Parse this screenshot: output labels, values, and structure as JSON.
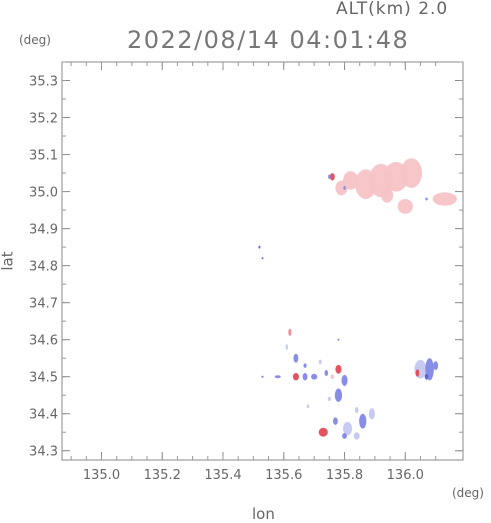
{
  "header": {
    "altitude_label": "ALT(km) 2.0",
    "timestamp": "2022/08/14 04:01:48",
    "y_unit": "(deg)",
    "x_unit": "(deg)"
  },
  "chart_data": {
    "type": "scatter",
    "xlabel": "lon",
    "ylabel": "lat",
    "xlim": [
      134.87,
      136.19
    ],
    "ylim": [
      34.275,
      35.35
    ],
    "x_ticks": [
      "135.0",
      "135.2",
      "135.4",
      "135.6",
      "135.8",
      "136.0"
    ],
    "y_ticks": [
      "34.3",
      "34.4",
      "34.5",
      "34.6",
      "34.7",
      "34.8",
      "34.9",
      "35.0",
      "35.1",
      "35.2",
      "35.3"
    ],
    "grid": false,
    "colors": {
      "light_pink": "#f6c3c6",
      "pink": "#f08a93",
      "red": "#e24b57",
      "light_blue": "#c4c8f2",
      "blue": "#8288e6",
      "dark_blue": "#5a5fd8"
    },
    "echoes": [
      {
        "lon": 135.87,
        "lat": 35.02,
        "rx": 0.035,
        "ry": 0.04,
        "color": "light_pink"
      },
      {
        "lon": 135.92,
        "lat": 35.03,
        "rx": 0.04,
        "ry": 0.045,
        "color": "light_pink"
      },
      {
        "lon": 135.97,
        "lat": 35.04,
        "rx": 0.04,
        "ry": 0.04,
        "color": "light_pink"
      },
      {
        "lon": 136.02,
        "lat": 35.05,
        "rx": 0.035,
        "ry": 0.04,
        "color": "light_pink"
      },
      {
        "lon": 135.82,
        "lat": 35.03,
        "rx": 0.025,
        "ry": 0.025,
        "color": "light_pink"
      },
      {
        "lon": 135.79,
        "lat": 35.01,
        "rx": 0.02,
        "ry": 0.02,
        "color": "light_pink"
      },
      {
        "lon": 136.0,
        "lat": 34.96,
        "rx": 0.025,
        "ry": 0.02,
        "color": "light_pink"
      },
      {
        "lon": 135.94,
        "lat": 34.99,
        "rx": 0.02,
        "ry": 0.02,
        "color": "light_pink"
      },
      {
        "lon": 136.13,
        "lat": 34.98,
        "rx": 0.04,
        "ry": 0.018,
        "color": "light_pink"
      },
      {
        "lon": 135.76,
        "lat": 35.04,
        "rx": 0.008,
        "ry": 0.01,
        "color": "red"
      },
      {
        "lon": 135.75,
        "lat": 35.04,
        "rx": 0.004,
        "ry": 0.006,
        "color": "blue"
      },
      {
        "lon": 135.8,
        "lat": 35.01,
        "rx": 0.004,
        "ry": 0.005,
        "color": "blue"
      },
      {
        "lon": 136.07,
        "lat": 34.98,
        "rx": 0.004,
        "ry": 0.004,
        "color": "blue"
      },
      {
        "lon": 135.52,
        "lat": 34.85,
        "rx": 0.002,
        "ry": 0.004,
        "color": "dark_blue"
      },
      {
        "lon": 135.53,
        "lat": 34.82,
        "rx": 0.002,
        "ry": 0.002,
        "color": "dark_blue"
      },
      {
        "lon": 135.62,
        "lat": 34.62,
        "rx": 0.005,
        "ry": 0.01,
        "color": "pink"
      },
      {
        "lon": 135.61,
        "lat": 34.58,
        "rx": 0.004,
        "ry": 0.008,
        "color": "light_blue"
      },
      {
        "lon": 135.78,
        "lat": 34.6,
        "rx": 0.003,
        "ry": 0.003,
        "color": "blue"
      },
      {
        "lon": 135.64,
        "lat": 34.55,
        "rx": 0.008,
        "ry": 0.012,
        "color": "blue"
      },
      {
        "lon": 135.67,
        "lat": 34.53,
        "rx": 0.005,
        "ry": 0.006,
        "color": "blue"
      },
      {
        "lon": 135.72,
        "lat": 34.54,
        "rx": 0.005,
        "ry": 0.006,
        "color": "light_blue"
      },
      {
        "lon": 135.64,
        "lat": 34.5,
        "rx": 0.01,
        "ry": 0.01,
        "color": "red"
      },
      {
        "lon": 135.67,
        "lat": 34.5,
        "rx": 0.008,
        "ry": 0.01,
        "color": "blue"
      },
      {
        "lon": 135.7,
        "lat": 34.5,
        "rx": 0.01,
        "ry": 0.008,
        "color": "blue"
      },
      {
        "lon": 135.74,
        "lat": 34.51,
        "rx": 0.006,
        "ry": 0.008,
        "color": "blue"
      },
      {
        "lon": 135.78,
        "lat": 34.52,
        "rx": 0.01,
        "ry": 0.012,
        "color": "red"
      },
      {
        "lon": 135.8,
        "lat": 34.49,
        "rx": 0.01,
        "ry": 0.015,
        "color": "blue"
      },
      {
        "lon": 135.76,
        "lat": 34.5,
        "rx": 0.006,
        "ry": 0.006,
        "color": "light_pink"
      },
      {
        "lon": 135.78,
        "lat": 34.45,
        "rx": 0.012,
        "ry": 0.018,
        "color": "blue"
      },
      {
        "lon": 135.75,
        "lat": 34.44,
        "rx": 0.005,
        "ry": 0.006,
        "color": "light_blue"
      },
      {
        "lon": 135.68,
        "lat": 34.42,
        "rx": 0.004,
        "ry": 0.005,
        "color": "light_blue"
      },
      {
        "lon": 135.84,
        "lat": 34.41,
        "rx": 0.006,
        "ry": 0.008,
        "color": "light_blue"
      },
      {
        "lon": 135.58,
        "lat": 34.5,
        "rx": 0.01,
        "ry": 0.004,
        "color": "blue"
      },
      {
        "lon": 135.53,
        "lat": 34.5,
        "rx": 0.004,
        "ry": 0.003,
        "color": "blue"
      },
      {
        "lon": 135.73,
        "lat": 34.35,
        "rx": 0.015,
        "ry": 0.012,
        "color": "red"
      },
      {
        "lon": 135.77,
        "lat": 34.38,
        "rx": 0.008,
        "ry": 0.01,
        "color": "blue"
      },
      {
        "lon": 135.81,
        "lat": 34.36,
        "rx": 0.015,
        "ry": 0.018,
        "color": "light_blue"
      },
      {
        "lon": 135.86,
        "lat": 34.38,
        "rx": 0.012,
        "ry": 0.02,
        "color": "blue"
      },
      {
        "lon": 135.89,
        "lat": 34.4,
        "rx": 0.01,
        "ry": 0.015,
        "color": "light_blue"
      },
      {
        "lon": 135.84,
        "lat": 34.34,
        "rx": 0.01,
        "ry": 0.01,
        "color": "light_blue"
      },
      {
        "lon": 135.8,
        "lat": 34.34,
        "rx": 0.008,
        "ry": 0.008,
        "color": "blue"
      },
      {
        "lon": 136.05,
        "lat": 34.52,
        "rx": 0.02,
        "ry": 0.025,
        "color": "light_blue"
      },
      {
        "lon": 136.08,
        "lat": 34.52,
        "rx": 0.014,
        "ry": 0.03,
        "color": "blue"
      },
      {
        "lon": 136.04,
        "lat": 34.51,
        "rx": 0.006,
        "ry": 0.01,
        "color": "red"
      },
      {
        "lon": 136.1,
        "lat": 34.53,
        "rx": 0.008,
        "ry": 0.012,
        "color": "blue"
      },
      {
        "lon": 136.07,
        "lat": 34.5,
        "rx": 0.006,
        "ry": 0.008,
        "color": "dark_blue"
      }
    ]
  }
}
